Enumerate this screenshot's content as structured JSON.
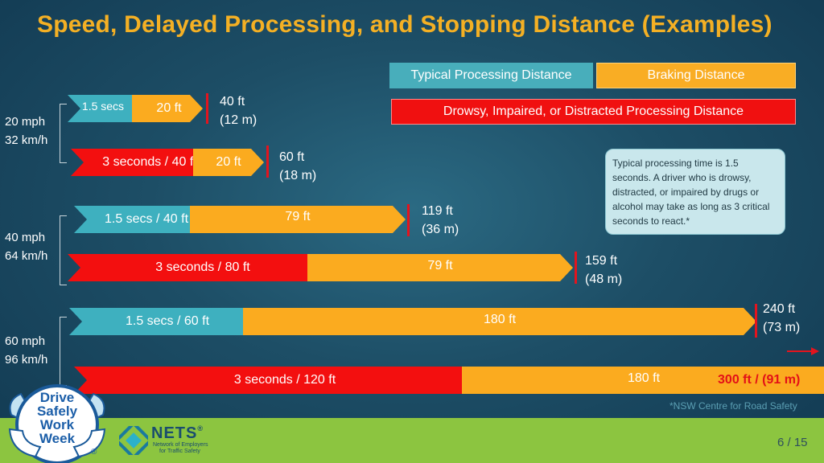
{
  "title": "Speed, Delayed Processing, and Stopping Distance (Examples)",
  "legend": {
    "typical": "Typical Processing Distance",
    "braking": "Braking Distance",
    "impaired": "Drowsy, Impaired, or Distracted Processing Distance"
  },
  "colors": {
    "typical": "#3eb0bf",
    "braking": "#fbab1f",
    "impaired": "#f30f0f",
    "title": "#f4b024",
    "footer": "#8cc540"
  },
  "groups": [
    {
      "speed_mph": "20 mph",
      "speed_kmh": "32 km/h",
      "rows": [
        {
          "proc_label": "1.5 secs",
          "brake_label": "20 ft",
          "dist_ft": "40 ft",
          "dist_m": "(12 m)"
        },
        {
          "proc_label": "3 seconds / 40 ft",
          "brake_label": "20 ft",
          "dist_ft": "60 ft",
          "dist_m": "(18 m)"
        }
      ]
    },
    {
      "speed_mph": "40 mph",
      "speed_kmh": "64 km/h",
      "rows": [
        {
          "proc_label": "1.5 secs / 40 ft",
          "brake_label": "79 ft",
          "dist_ft": "119 ft",
          "dist_m": "(36 m)"
        },
        {
          "proc_label": "3 seconds / 80 ft",
          "brake_label": "79 ft",
          "dist_ft": "159 ft",
          "dist_m": "(48 m)"
        }
      ]
    },
    {
      "speed_mph": "60 mph",
      "speed_kmh": "96 km/h",
      "rows": [
        {
          "proc_label": "1.5 secs / 60 ft",
          "brake_label": "180 ft",
          "dist_ft": "240 ft",
          "dist_m": "(73 m)"
        },
        {
          "proc_label": "3 seconds / 120 ft",
          "brake_label": "180 ft",
          "total": "300 ft / (91 m)"
        }
      ]
    }
  ],
  "note": "Typical processing time is 1.5 seconds.  A driver who is drowsy, distracted, or impaired by drugs or alcohol may take as long as 3 critical seconds to react.*",
  "credit": "*NSW Centre for Road Safety",
  "page": "6 / 15",
  "logos": {
    "dsww": {
      "line1": "Drive",
      "line2": "Safely",
      "line3": "Work",
      "line4": "Week",
      "mark": "®"
    },
    "nets": {
      "name": "NETS",
      "tm": "®",
      "sub1": "Network of Employers",
      "sub2": "for Traffic Safety"
    }
  }
}
